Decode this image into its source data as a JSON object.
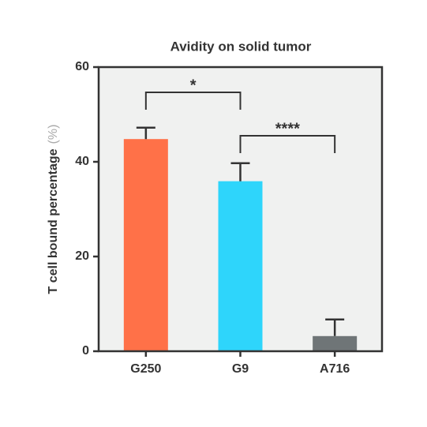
{
  "chart_data": {
    "type": "bar",
    "title": "Avidity on solid tumor",
    "ylabel": "T cell bound percentage",
    "yunit": "(%)",
    "categories": [
      "G250",
      "G9",
      "A716"
    ],
    "values": [
      44.8,
      35.9,
      3.2
    ],
    "errors": [
      2.4,
      3.8,
      3.5
    ],
    "colors": [
      "#ff7148",
      "#2ed5fb",
      "#6f7577"
    ],
    "ylim": [
      0,
      60
    ],
    "yticks": [
      0,
      20,
      40,
      60
    ],
    "annotations": [
      "*",
      "****"
    ]
  }
}
